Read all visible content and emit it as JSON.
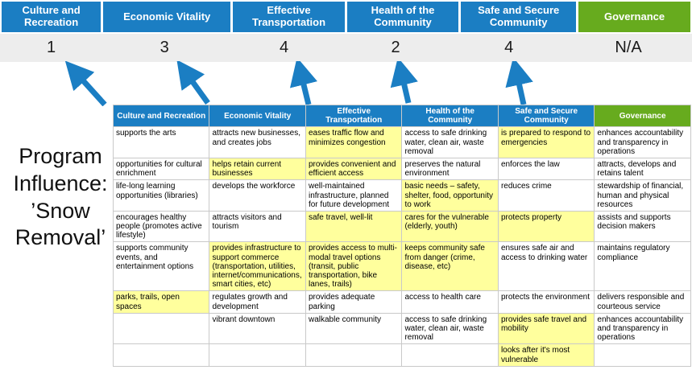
{
  "colors": {
    "header-blue": "#1b7ec3",
    "header-green": "#67ab1e",
    "highlight-yellow": "#ffff9d",
    "score-bg": "#ededed",
    "arrow-blue": "#1b7ec3",
    "border-gray": "#c9c9c9"
  },
  "program": {
    "title": "Program Influence: ’Snow Removal’"
  },
  "scoreboard": {
    "columns": [
      {
        "label": "Culture and Recreation",
        "score": "1",
        "style": "blue"
      },
      {
        "label": "Economic Vitality",
        "score": "3",
        "style": "blue"
      },
      {
        "label": "Effective Transportation",
        "score": "4",
        "style": "blue"
      },
      {
        "label": "Health of the Community",
        "score": "2",
        "style": "blue"
      },
      {
        "label": "Safe and Secure Community",
        "score": "4",
        "style": "blue"
      },
      {
        "label": "Governance",
        "score": "N/A",
        "style": "green"
      }
    ]
  },
  "table": {
    "headers": [
      {
        "label": "Culture and Recreation",
        "style": "blue"
      },
      {
        "label": "Economic Vitality",
        "style": "blue"
      },
      {
        "label": "Effective Transportation",
        "style": "blue"
      },
      {
        "label": "Health of the Community",
        "style": "blue"
      },
      {
        "label": "Safe and Secure Community",
        "style": "blue"
      },
      {
        "label": "Governance",
        "style": "green"
      }
    ],
    "rows": [
      {
        "cells": [
          {
            "text": "supports the arts",
            "highlight": false
          },
          {
            "text": "attracts new businesses, and creates jobs",
            "highlight": false
          },
          {
            "text": "eases traffic flow and minimizes congestion",
            "highlight": true
          },
          {
            "text": "access to safe drinking water, clean air, waste removal",
            "highlight": false
          },
          {
            "text": "is prepared to respond to emergencies",
            "highlight": true
          },
          {
            "text": "enhances accountability and transparency in operations",
            "highlight": false
          }
        ]
      },
      {
        "cells": [
          {
            "text": "opportunities for cultural enrichment",
            "highlight": false
          },
          {
            "text": "helps retain current businesses",
            "highlight": true
          },
          {
            "text": "provides convenient and efficient access",
            "highlight": true
          },
          {
            "text": "preserves the natural environment",
            "highlight": false
          },
          {
            "text": "enforces the law",
            "highlight": false
          },
          {
            "text": "attracts, develops and retains talent",
            "highlight": false
          }
        ]
      },
      {
        "cells": [
          {
            "text": "life-long learning opportunities (libraries)",
            "highlight": false
          },
          {
            "text": "develops the workforce",
            "highlight": false
          },
          {
            "text": "well-maintained infrastructure, planned for future development",
            "highlight": false
          },
          {
            "text": "basic needs – safety, shelter, food, opportunity to work",
            "highlight": true
          },
          {
            "text": "reduces crime",
            "highlight": false
          },
          {
            "text": "stewardship of financial, human and physical resources",
            "highlight": false
          }
        ]
      },
      {
        "cells": [
          {
            "text": "encourages healthy people (promotes active lifestyle)",
            "highlight": false
          },
          {
            "text": "attracts visitors and tourism",
            "highlight": false
          },
          {
            "text": "safe travel, well-lit",
            "highlight": true
          },
          {
            "text": "cares for the vulnerable (elderly, youth)",
            "highlight": true
          },
          {
            "text": "protects property",
            "highlight": true
          },
          {
            "text": "assists and supports decision makers",
            "highlight": false
          }
        ]
      },
      {
        "cells": [
          {
            "text": "supports community events, and entertainment options",
            "highlight": false
          },
          {
            "text": "provides infrastructure to support commerce (transportation, utilities, internet/communications, smart cities, etc)",
            "highlight": true
          },
          {
            "text": "provides access to multi-modal travel options (transit, public transportation, bike lanes, trails)",
            "highlight": true
          },
          {
            "text": "keeps community safe from danger (crime, disease, etc)",
            "highlight": true
          },
          {
            "text": "ensures safe air and access to drinking water",
            "highlight": false
          },
          {
            "text": "maintains regulatory compliance",
            "highlight": false
          }
        ]
      },
      {
        "cells": [
          {
            "text": "parks, trails, open spaces",
            "highlight": true
          },
          {
            "text": "regulates growth and development",
            "highlight": false
          },
          {
            "text": "provides adequate parking",
            "highlight": false
          },
          {
            "text": "access to health care",
            "highlight": false
          },
          {
            "text": "protects the environment",
            "highlight": false
          },
          {
            "text": "delivers responsible and courteous service",
            "highlight": false
          }
        ]
      },
      {
        "cells": [
          {
            "text": "",
            "highlight": false
          },
          {
            "text": "vibrant downtown",
            "highlight": false
          },
          {
            "text": "walkable community",
            "highlight": false
          },
          {
            "text": "access to safe drinking water, clean air, waste removal",
            "highlight": false
          },
          {
            "text": "provides safe travel and mobility",
            "highlight": true
          },
          {
            "text": "enhances accountability and transparency in operations",
            "highlight": false
          }
        ]
      },
      {
        "cells": [
          {
            "text": "",
            "highlight": false
          },
          {
            "text": "",
            "highlight": false
          },
          {
            "text": "",
            "highlight": false
          },
          {
            "text": "",
            "highlight": false
          },
          {
            "text": "looks after it's most vulnerable",
            "highlight": true
          },
          {
            "text": "",
            "highlight": false
          }
        ]
      }
    ]
  }
}
